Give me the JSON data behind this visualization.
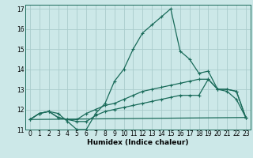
{
  "xlabel": "Humidex (Indice chaleur)",
  "background_color": "#cce8e8",
  "grid_color": "#aacccc",
  "line_color": "#1a6b5a",
  "xlim": [
    -0.5,
    23.5
  ],
  "ylim": [
    11,
    17.2
  ],
  "yticks": [
    11,
    12,
    13,
    14,
    15,
    16,
    17
  ],
  "xticks": [
    0,
    1,
    2,
    3,
    4,
    5,
    6,
    7,
    8,
    9,
    10,
    11,
    12,
    13,
    14,
    15,
    16,
    17,
    18,
    19,
    20,
    21,
    22,
    23
  ],
  "series1_x": [
    0,
    1,
    2,
    3,
    4,
    5,
    6,
    7,
    8,
    9,
    10,
    11,
    12,
    13,
    14,
    15,
    16,
    17,
    18,
    19,
    20,
    21,
    22,
    23
  ],
  "series1_y": [
    11.5,
    11.8,
    11.9,
    11.8,
    11.4,
    11.0,
    11.0,
    11.8,
    12.3,
    13.4,
    14.0,
    15.0,
    15.8,
    16.2,
    16.6,
    17.0,
    14.9,
    14.5,
    13.8,
    13.9,
    13.0,
    12.9,
    12.5,
    11.6
  ],
  "series2_x": [
    0,
    1,
    2,
    3,
    4,
    5,
    6,
    7,
    8,
    9,
    10,
    11,
    12,
    13,
    14,
    15,
    16,
    17,
    18,
    19,
    20,
    21,
    22,
    23
  ],
  "series2_y": [
    11.5,
    11.8,
    11.9,
    11.6,
    11.5,
    11.5,
    11.8,
    12.0,
    12.2,
    12.3,
    12.5,
    12.7,
    12.9,
    13.0,
    13.1,
    13.2,
    13.3,
    13.4,
    13.5,
    13.5,
    13.0,
    13.0,
    12.9,
    11.6
  ],
  "series3_x": [
    0,
    1,
    2,
    3,
    4,
    5,
    6,
    7,
    8,
    9,
    10,
    11,
    12,
    13,
    14,
    15,
    16,
    17,
    18,
    19,
    20,
    21,
    22,
    23
  ],
  "series3_y": [
    11.5,
    11.8,
    11.9,
    11.6,
    11.5,
    11.4,
    11.4,
    11.7,
    11.9,
    12.0,
    12.1,
    12.2,
    12.3,
    12.4,
    12.5,
    12.6,
    12.7,
    12.7,
    12.7,
    13.5,
    13.0,
    13.0,
    12.9,
    11.6
  ],
  "series4_x": [
    0,
    23
  ],
  "series4_y": [
    11.5,
    11.6
  ]
}
